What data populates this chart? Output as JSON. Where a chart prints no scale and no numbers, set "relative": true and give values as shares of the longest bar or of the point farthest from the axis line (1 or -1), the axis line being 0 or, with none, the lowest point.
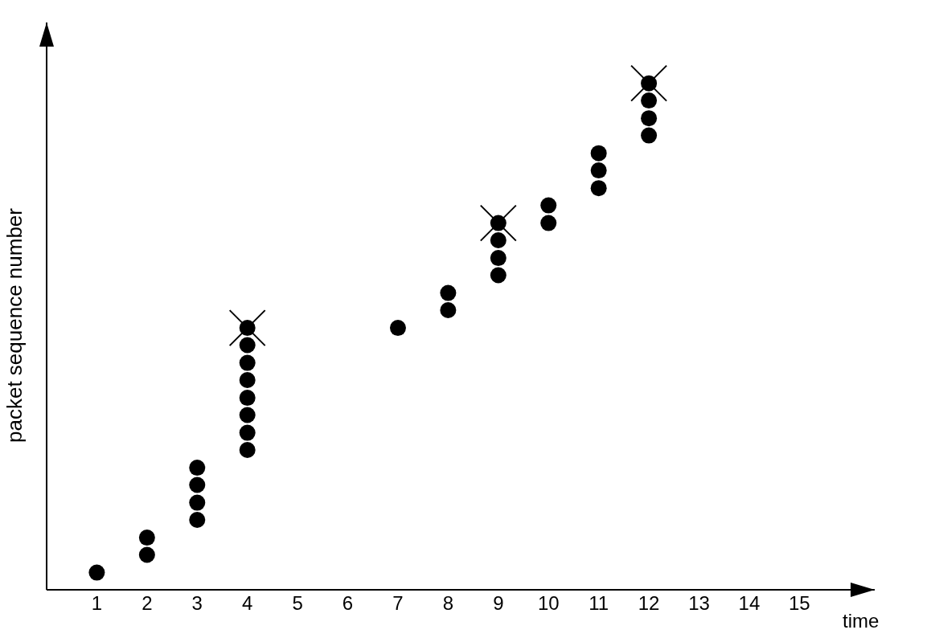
{
  "chart_data": {
    "type": "scatter",
    "xlabel": "time",
    "ylabel": "packet sequence number",
    "relative": true,
    "xlim": [
      0,
      16.5
    ],
    "xticks": [
      1,
      2,
      3,
      4,
      5,
      6,
      7,
      8,
      9,
      10,
      11,
      12,
      13,
      14,
      15
    ],
    "grid": false,
    "series": [
      {
        "color": "#000000",
        "marker": "circle",
        "x": [
          1,
          2,
          2,
          3,
          3,
          3,
          3,
          4,
          4,
          4,
          4,
          4,
          4,
          4,
          4,
          7,
          8,
          8,
          9,
          9,
          9,
          9,
          10,
          10,
          11,
          11,
          11,
          12,
          12,
          12,
          12
        ],
        "values": [
          0.034,
          0.069,
          0.103,
          0.138,
          0.172,
          0.207,
          0.241,
          0.276,
          0.31,
          0.345,
          0.379,
          0.414,
          0.448,
          0.483,
          0.517,
          0.517,
          0.552,
          0.586,
          0.621,
          0.655,
          0.69,
          0.724,
          0.724,
          0.759,
          0.793,
          0.828,
          0.862,
          0.897,
          0.931,
          0.966,
          1
        ]
      },
      {
        "color": "#000000",
        "marker": "cross",
        "x": [
          4,
          9,
          12
        ],
        "values": [
          0.517,
          0.724,
          1
        ]
      }
    ]
  }
}
